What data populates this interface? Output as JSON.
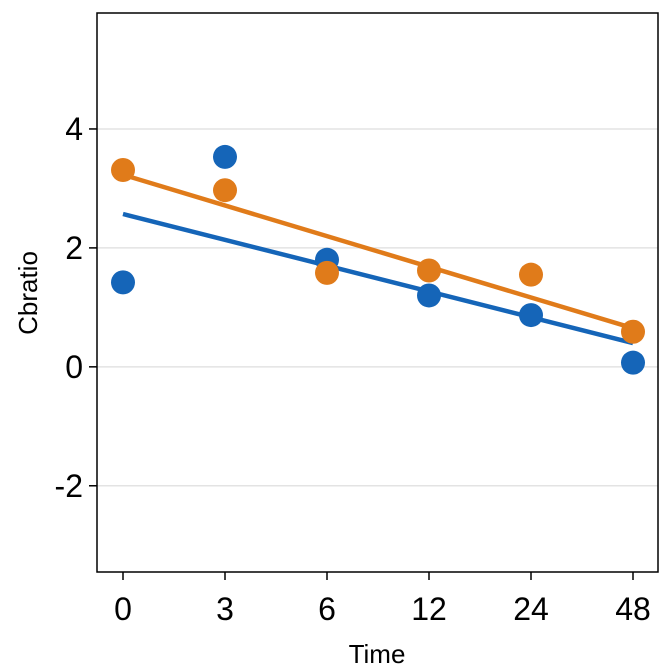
{
  "chart_data": {
    "type": "scatter",
    "xlabel": "Time",
    "ylabel": "Cbratio",
    "categories": [
      "0",
      "3",
      "6",
      "12",
      "24",
      "48"
    ],
    "ylim": [
      -3.45,
      5.95
    ],
    "yticks": [
      -2,
      0,
      2,
      4
    ],
    "ytick_labels": [
      "-2",
      "0",
      "2",
      "4"
    ],
    "grid": "horizontal major",
    "legend": "none",
    "series": [
      {
        "color": "#1565b8",
        "values": [
          1.42,
          3.53,
          1.8,
          1.2,
          0.87,
          0.07
        ],
        "trend": [
          2.57,
          0.4
        ]
      },
      {
        "color": "#e07b1a",
        "values": [
          3.31,
          2.97,
          1.58,
          1.62,
          1.55,
          0.59
        ],
        "trend": [
          3.23,
          0.65
        ]
      }
    ]
  }
}
